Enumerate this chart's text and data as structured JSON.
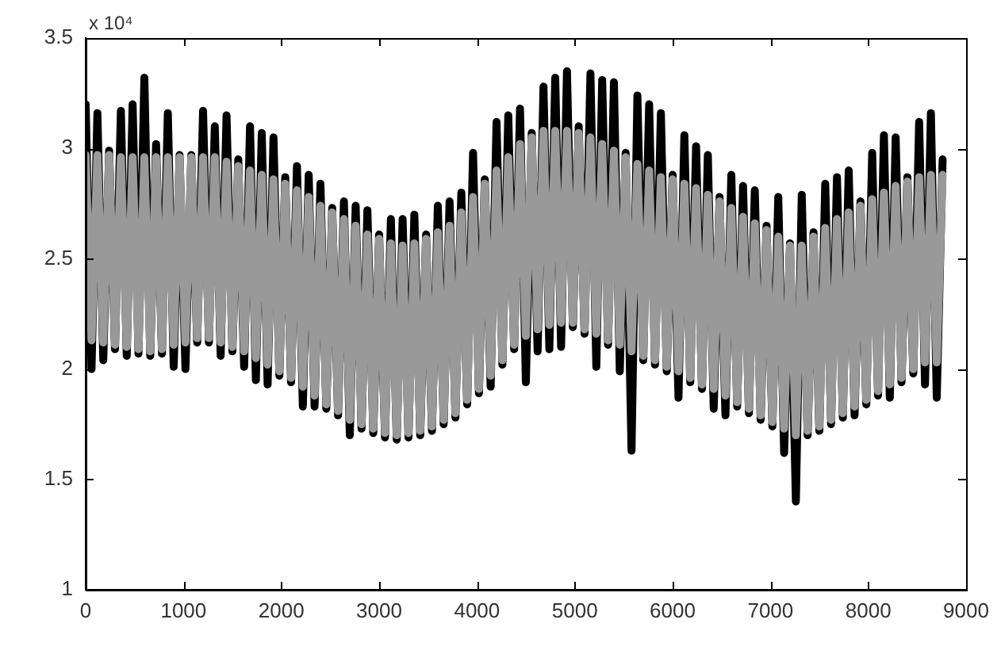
{
  "chart_data": {
    "type": "line",
    "annotations": [
      "x 10⁴"
    ],
    "x": [
      0,
      60,
      120,
      180,
      240,
      300,
      360,
      420,
      480,
      540,
      600,
      660,
      720,
      780,
      840,
      900,
      960,
      1020,
      1080,
      1140,
      1200,
      1260,
      1320,
      1380,
      1440,
      1500,
      1560,
      1620,
      1680,
      1740,
      1800,
      1860,
      1920,
      1980,
      2040,
      2100,
      2160,
      2220,
      2280,
      2340,
      2400,
      2460,
      2520,
      2580,
      2640,
      2700,
      2760,
      2820,
      2880,
      2940,
      3000,
      3060,
      3120,
      3180,
      3240,
      3300,
      3360,
      3420,
      3480,
      3540,
      3600,
      3660,
      3720,
      3780,
      3840,
      3900,
      3960,
      4020,
      4080,
      4140,
      4200,
      4260,
      4320,
      4380,
      4440,
      4500,
      4560,
      4620,
      4680,
      4740,
      4800,
      4860,
      4920,
      4980,
      5040,
      5100,
      5160,
      5220,
      5280,
      5340,
      5400,
      5460,
      5520,
      5580,
      5640,
      5700,
      5760,
      5820,
      5880,
      5940,
      6000,
      6060,
      6120,
      6180,
      6240,
      6300,
      6360,
      6420,
      6480,
      6540,
      6600,
      6660,
      6720,
      6780,
      6840,
      6900,
      6960,
      7020,
      7080,
      7140,
      7200,
      7260,
      7320,
      7380,
      7440,
      7500,
      7560,
      7620,
      7680,
      7740,
      7800,
      7860,
      7920,
      7980,
      8040,
      8100,
      8160,
      8220,
      8280,
      8340,
      8400,
      8460,
      8520,
      8580,
      8640,
      8700,
      8760
    ],
    "series": [
      {
        "color": "#000000",
        "values": [
          3.2,
          2.0,
          3.16,
          2.04,
          2.99,
          2.09,
          3.17,
          2.06,
          3.2,
          2.07,
          3.32,
          2.06,
          3.02,
          2.07,
          3.16,
          2.01,
          2.97,
          2.0,
          2.97,
          2.12,
          3.17,
          2.12,
          3.1,
          2.06,
          3.15,
          2.08,
          2.95,
          2.01,
          3.1,
          1.95,
          3.07,
          1.93,
          3.05,
          1.97,
          2.87,
          1.94,
          2.92,
          1.83,
          2.88,
          1.83,
          2.84,
          1.82,
          2.73,
          1.79,
          2.76,
          1.7,
          2.74,
          1.73,
          2.72,
          1.71,
          2.61,
          1.69,
          2.68,
          1.68,
          2.68,
          1.69,
          2.7,
          1.7,
          2.61,
          1.72,
          2.74,
          1.75,
          2.76,
          1.78,
          2.8,
          1.84,
          2.98,
          1.89,
          2.86,
          1.92,
          3.12,
          2.02,
          3.15,
          2.09,
          3.18,
          1.94,
          3.07,
          2.08,
          3.28,
          2.09,
          3.32,
          2.1,
          3.35,
          2.19,
          3.1,
          2.16,
          3.34,
          2.01,
          3.31,
          2.11,
          3.3,
          1.99,
          2.98,
          1.63,
          3.24,
          2.04,
          3.2,
          2.02,
          3.16,
          1.99,
          2.88,
          1.87,
          3.06,
          1.94,
          3.01,
          1.91,
          2.97,
          1.82,
          2.78,
          1.79,
          2.88,
          1.83,
          2.83,
          1.8,
          2.81,
          1.77,
          2.65,
          1.74,
          2.78,
          1.62,
          2.57,
          1.4,
          2.79,
          1.7,
          2.62,
          1.72,
          2.84,
          1.75,
          2.87,
          1.78,
          2.9,
          1.79,
          2.76,
          1.84,
          2.98,
          1.88,
          3.06,
          1.87,
          3.05,
          1.94,
          2.87,
          1.98,
          3.12,
          1.93,
          3.16,
          1.87,
          2.95
        ]
      },
      {
        "color": "#999999",
        "values": [
          2.97,
          2.13,
          2.97,
          2.12,
          2.97,
          2.11,
          2.96,
          2.1,
          2.96,
          2.09,
          2.96,
          2.08,
          2.96,
          2.09,
          2.96,
          2.11,
          2.96,
          2.12,
          2.96,
          2.14,
          2.96,
          2.14,
          2.96,
          2.12,
          2.94,
          2.1,
          2.92,
          2.08,
          2.9,
          2.05,
          2.88,
          2.02,
          2.86,
          1.99,
          2.84,
          1.96,
          2.81,
          1.92,
          2.78,
          1.88,
          2.74,
          1.84,
          2.71,
          1.81,
          2.68,
          1.77,
          2.65,
          1.75,
          2.61,
          1.73,
          2.59,
          1.71,
          2.57,
          1.7,
          2.56,
          1.71,
          2.57,
          1.72,
          2.59,
          1.74,
          2.62,
          1.77,
          2.65,
          1.8,
          2.71,
          1.86,
          2.78,
          1.91,
          2.84,
          1.97,
          2.9,
          2.04,
          2.96,
          2.11,
          3.02,
          2.15,
          3.05,
          2.18,
          3.08,
          2.2,
          3.08,
          2.21,
          3.08,
          2.21,
          3.07,
          2.18,
          3.05,
          2.16,
          3.02,
          2.13,
          2.99,
          2.11,
          2.96,
          2.08,
          2.93,
          2.06,
          2.9,
          2.04,
          2.87,
          2.01,
          2.86,
          1.99,
          2.84,
          1.96,
          2.82,
          1.93,
          2.79,
          1.91,
          2.76,
          1.88,
          2.73,
          1.85,
          2.69,
          1.82,
          2.66,
          1.79,
          2.63,
          1.76,
          2.6,
          1.73,
          2.56,
          1.7,
          2.56,
          1.72,
          2.6,
          1.74,
          2.64,
          1.77,
          2.68,
          1.8,
          2.71,
          1.83,
          2.74,
          1.86,
          2.77,
          1.9,
          2.8,
          1.93,
          2.83,
          1.96,
          2.85,
          2.0,
          2.87,
          2.03,
          2.88,
          2.03,
          2.88
        ]
      }
    ],
    "xlim": [
      0,
      9000
    ],
    "xticks": [
      0,
      1000,
      2000,
      3000,
      4000,
      5000,
      6000,
      7000,
      8000,
      9000
    ],
    "ylim": [
      1,
      3.5
    ],
    "yticks": [
      1,
      1.5,
      2,
      2.5,
      3,
      3.5
    ],
    "grid": false,
    "legend": false,
    "marker": "none"
  }
}
